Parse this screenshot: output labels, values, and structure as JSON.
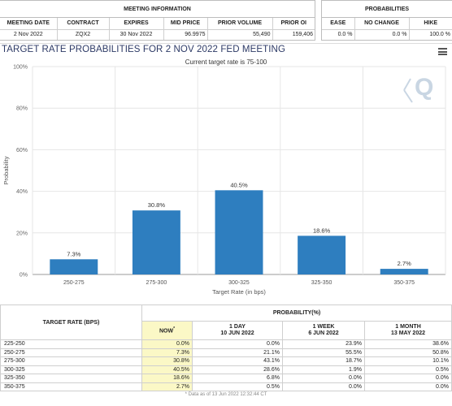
{
  "meeting_info": {
    "title": "MEETING INFORMATION",
    "columns": [
      "MEETING DATE",
      "CONTRACT",
      "EXPIRES",
      "MID PRICE",
      "PRIOR VOLUME",
      "PRIOR OI"
    ],
    "values": [
      "2 Nov 2022",
      "ZQX2",
      "30 Nov 2022",
      "96.9975",
      "55,490",
      "159,406"
    ]
  },
  "probabilities": {
    "title": "PROBABILITIES",
    "columns": [
      "EASE",
      "NO CHANGE",
      "HIKE"
    ],
    "values": [
      "0.0 %",
      "0.0 %",
      "100.0 %"
    ]
  },
  "chart": {
    "title": "TARGET RATE PROBABILITIES FOR 2 NOV 2022 FED MEETING",
    "subtitle": "Current target rate is 75-100",
    "menu_icon": "hamburger-menu-icon",
    "watermark": "Q",
    "bar_color": "#2e7ebf"
  },
  "chart_data": {
    "type": "bar",
    "title": "TARGET RATE PROBABILITIES FOR 2 NOV 2022 FED MEETING",
    "subtitle": "Current target rate is 75-100",
    "categories": [
      "250-275",
      "275-300",
      "300-325",
      "325-350",
      "350-375"
    ],
    "values": [
      7.3,
      30.8,
      40.5,
      18.6,
      2.7
    ],
    "data_labels": [
      "7.3%",
      "30.8%",
      "40.5%",
      "18.6%",
      "2.7%"
    ],
    "xlabel": "Target Rate (in bps)",
    "ylabel": "Probability",
    "ylim": [
      0,
      100
    ],
    "yticks": [
      "0%",
      "20%",
      "40%",
      "60%",
      "80%",
      "100%"
    ],
    "grid": true
  },
  "table": {
    "rate_header": "TARGET RATE (BPS)",
    "prob_header": "PROBABILITY(%)",
    "col_headers": [
      {
        "line1": "NOW",
        "line2": ""
      },
      {
        "line1": "1 DAY",
        "line2": "10 JUN 2022"
      },
      {
        "line1": "1 WEEK",
        "line2": "6 JUN 2022"
      },
      {
        "line1": "1 MONTH",
        "line2": "13 MAY 2022"
      }
    ],
    "now_mark": "*",
    "rows": [
      [
        "225-250",
        "0.0%",
        "0.0%",
        "23.9%",
        "38.6%"
      ],
      [
        "250-275",
        "7.3%",
        "21.1%",
        "55.5%",
        "50.8%"
      ],
      [
        "275-300",
        "30.8%",
        "43.1%",
        "18.7%",
        "10.1%"
      ],
      [
        "300-325",
        "40.5%",
        "28.6%",
        "1.9%",
        "0.5%"
      ],
      [
        "325-350",
        "18.6%",
        "6.8%",
        "0.0%",
        "0.0%"
      ],
      [
        "350-375",
        "2.7%",
        "0.5%",
        "0.0%",
        "0.0%"
      ]
    ],
    "footnote": "* Data as of 13 Jun 2022 12:32:44 CT"
  }
}
